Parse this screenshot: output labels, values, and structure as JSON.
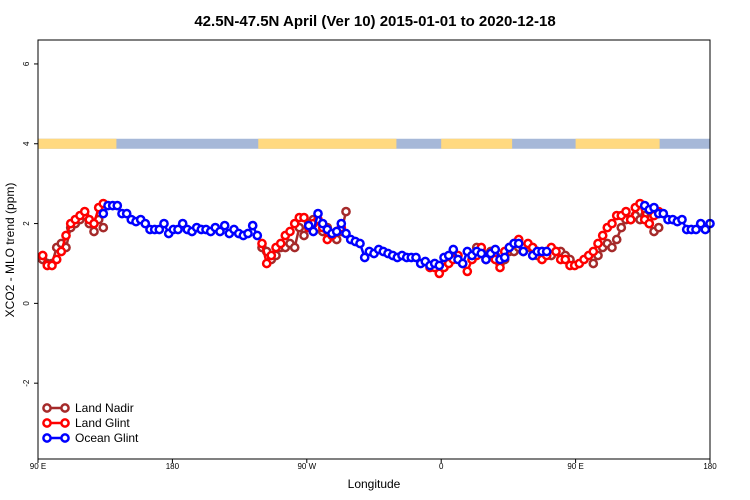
{
  "chart_data": {
    "type": "line",
    "title": "42.5N-47.5N April (Ver 10)   2015-01-01 to 2020-12-18",
    "xlabel": "Longitude",
    "ylabel": "XCO2 - MLO trend (ppm)",
    "xlim": [
      90,
      450
    ],
    "ylim": [
      -3.9,
      6.6
    ],
    "x_ticks": [
      {
        "value": 90,
        "label": "90 E"
      },
      {
        "value": 162,
        "label": "180"
      },
      {
        "value": 234,
        "label": "90 W"
      },
      {
        "value": 306,
        "label": "0"
      },
      {
        "value": 378,
        "label": "90 E"
      },
      {
        "value": 450,
        "label": "180"
      }
    ],
    "y_ticks": [
      {
        "value": -2,
        "label": "-2"
      },
      {
        "value": 0,
        "label": "0"
      },
      {
        "value": 2,
        "label": "2"
      },
      {
        "value": 4,
        "label": "4"
      },
      {
        "value": 6,
        "label": "6"
      }
    ],
    "land_ocean_strip": {
      "y_center": 4,
      "land_color": "#ffd980",
      "ocean_color": "#a6b8d8",
      "land_segments": [
        [
          90,
          132
        ],
        [
          208,
          282
        ],
        [
          306,
          344
        ],
        [
          378,
          423
        ]
      ]
    },
    "series": [
      {
        "name": "Land Nadir",
        "color": "#a52a2a",
        "segments": [
          {
            "x": [
              92.5,
              95,
              97.5,
              100,
              102.5,
              105,
              107.5,
              110,
              112.5,
              115,
              117.5,
              120,
              122.5,
              125
            ],
            "y": [
              1.1,
              1.0,
              1.0,
              1.4,
              1.5,
              1.4,
              1.9,
              2.0,
              2.1,
              2.2,
              2.0,
              1.8,
              2.1,
              1.9
            ]
          },
          {
            "x": [
              210,
              212.5,
              215,
              217.5,
              220,
              222.5,
              225,
              227.5,
              230,
              232.5,
              235,
              237.5,
              240,
              242.5,
              245,
              247.5,
              250,
              252.5,
              255
            ],
            "y": [
              1.4,
              1.3,
              1.1,
              1.2,
              1.4,
              1.4,
              1.5,
              1.4,
              1.9,
              1.7,
              2.0,
              2.1,
              1.9,
              1.8,
              1.9,
              1.7,
              1.6,
              1.8,
              2.3
            ]
          },
          {
            "x": [
              325,
              327.5,
              330,
              332.5,
              335,
              337.5,
              340,
              342.5,
              345,
              347.5,
              350,
              352.5,
              355,
              357.5,
              360,
              362.5,
              365,
              367.5,
              370,
              372.5,
              375
            ],
            "y": [
              1.4,
              1.3,
              1.2,
              1.3,
              1.2,
              1.0,
              1.1,
              1.3,
              1.3,
              1.4,
              1.3,
              1.4,
              1.4,
              1.2,
              1.3,
              1.3,
              1.2,
              1.3,
              1.3,
              1.2,
              1.1
            ]
          },
          {
            "x": [
              387.5,
              390,
              392.5,
              395,
              397.5,
              400,
              402.5,
              405,
              407.5,
              410,
              412.5,
              415,
              417.5,
              420,
              422.5
            ],
            "y": [
              1.0,
              1.2,
              1.4,
              1.5,
              1.4,
              1.6,
              1.9,
              2.1,
              2.1,
              2.2,
              2.1,
              2.2,
              2.0,
              1.8,
              1.9
            ]
          }
        ]
      },
      {
        "name": "Land Glint",
        "color": "#ff0000",
        "segments": [
          {
            "x": [
              92.5,
              95,
              97.5,
              100,
              102.5,
              105,
              107.5,
              110,
              112.5,
              115,
              117.5,
              120,
              122.5,
              125
            ],
            "y": [
              1.2,
              0.95,
              0.95,
              1.1,
              1.3,
              1.7,
              2.0,
              2.1,
              2.2,
              2.3,
              2.1,
              2.0,
              2.4,
              2.5
            ]
          },
          {
            "x": [
              210,
              212.5,
              215,
              217.5,
              220,
              222.5,
              225,
              227.5,
              230,
              232.5,
              235,
              237.5,
              240,
              242.5,
              245,
              247.5,
              250,
              252.5
            ],
            "y": [
              1.5,
              1.0,
              1.2,
              1.4,
              1.5,
              1.7,
              1.8,
              2.0,
              2.15,
              2.15,
              1.9,
              2.0,
              2.1,
              1.9,
              1.6,
              1.7,
              1.8,
              1.9
            ]
          },
          {
            "x": [
              300,
              302.5,
              305,
              307.5,
              310,
              312.5,
              315,
              317.5,
              320,
              322.5,
              325,
              327.5,
              330,
              332.5,
              335,
              337.5,
              340,
              342.5,
              345,
              347.5,
              350,
              352.5,
              355,
              357.5,
              360,
              362.5,
              365,
              367.5,
              370,
              372.5,
              375
            ],
            "y": [
              0.9,
              0.9,
              0.75,
              0.9,
              1.0,
              1.1,
              1.2,
              1.0,
              0.8,
              1.1,
              1.2,
              1.4,
              1.1,
              1.2,
              1.1,
              0.9,
              1.3,
              1.4,
              1.5,
              1.6,
              1.4,
              1.5,
              1.4,
              1.3,
              1.1,
              1.2,
              1.4,
              1.3,
              1.1,
              1.1,
              0.95
            ]
          },
          {
            "x": [
              377.5,
              380,
              382.5,
              385,
              387.5,
              390,
              392.5,
              395,
              397.5,
              400,
              402.5,
              405,
              407.5,
              410,
              412.5,
              415,
              417.5,
              420,
              422.5
            ],
            "y": [
              0.95,
              1.0,
              1.1,
              1.2,
              1.3,
              1.5,
              1.7,
              1.9,
              2.0,
              2.2,
              2.2,
              2.3,
              2.1,
              2.4,
              2.5,
              2.1,
              2.0,
              2.2,
              2.3
            ]
          }
        ]
      },
      {
        "name": "Ocean Glint",
        "color": "#0000ff",
        "segments": [
          {
            "x": [
              125,
              127.5,
              130,
              132.5,
              135,
              137.5,
              140,
              142.5,
              145,
              147.5,
              150,
              152.5,
              155,
              157.5,
              160,
              162.5,
              165,
              167.5,
              170,
              172.5,
              175,
              177.5,
              180,
              182.5,
              185,
              187.5,
              190,
              192.5,
              195,
              197.5,
              200,
              202.5,
              205,
              207.5
            ],
            "y": [
              2.25,
              2.45,
              2.45,
              2.45,
              2.25,
              2.25,
              2.1,
              2.05,
              2.1,
              2.0,
              1.85,
              1.85,
              1.85,
              2.0,
              1.75,
              1.85,
              1.85,
              2.0,
              1.85,
              1.8,
              1.9,
              1.85,
              1.85,
              1.8,
              1.9,
              1.8,
              1.95,
              1.75,
              1.85,
              1.75,
              1.7,
              1.75,
              1.95,
              1.7
            ]
          },
          {
            "x": [
              235,
              237.5,
              240,
              242.5,
              245,
              247.5,
              250,
              252.5,
              255,
              257.5,
              260,
              262.5,
              265,
              267.5,
              270,
              272.5,
              275,
              277.5,
              280,
              282.5,
              285,
              287.5,
              290,
              292.5,
              295,
              297.5,
              300,
              302.5,
              305,
              307.5,
              310,
              312.5,
              315,
              317.5,
              320,
              322.5,
              325,
              327.5,
              330,
              332.5,
              335,
              337.5,
              340,
              342.5,
              345,
              347.5,
              350
            ],
            "y": [
              1.95,
              1.8,
              2.25,
              2.0,
              1.85,
              1.75,
              1.8,
              2.0,
              1.75,
              1.6,
              1.55,
              1.5,
              1.15,
              1.3,
              1.25,
              1.35,
              1.3,
              1.25,
              1.2,
              1.15,
              1.2,
              1.15,
              1.15,
              1.15,
              1.0,
              1.05,
              0.95,
              1.0,
              0.95,
              1.15,
              1.2,
              1.35,
              1.1,
              1.0,
              1.3,
              1.2,
              1.3,
              1.25,
              1.1,
              1.25,
              1.35,
              1.1,
              1.15,
              1.4,
              1.5,
              1.5,
              1.3
            ]
          },
          {
            "x": [
              355,
              357.5,
              360,
              362.5
            ],
            "y": [
              1.2,
              1.3,
              1.3,
              1.3
            ]
          },
          {
            "x": [
              415,
              417.5,
              420,
              422.5,
              425,
              427.5,
              430,
              432.5,
              435,
              437.5,
              440,
              442.5,
              445,
              447.5,
              450
            ],
            "y": [
              2.45,
              2.35,
              2.4,
              2.25,
              2.25,
              2.1,
              2.1,
              2.05,
              2.1,
              1.85,
              1.85,
              1.85,
              2.0,
              1.85,
              2.0
            ]
          }
        ]
      }
    ],
    "legend": {
      "position": "bottom-left",
      "entries": [
        "Land Nadir",
        "Land Glint",
        "Ocean Glint"
      ]
    }
  }
}
